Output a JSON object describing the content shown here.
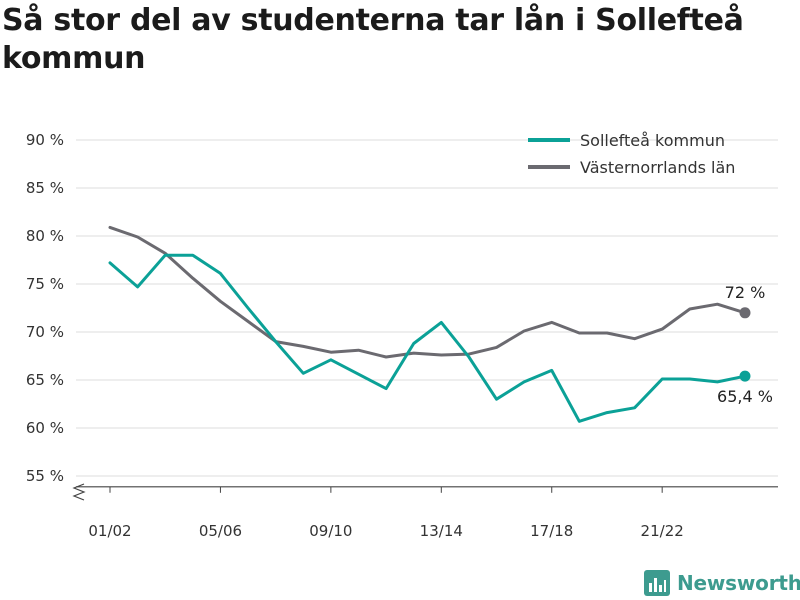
{
  "title": "Så stor del av studenterna tar lån i Sollefteå kommun",
  "brand": {
    "name": "Newsworthy",
    "logo_icon": "bar-chart-logo-icon",
    "color": "#3d9b8f"
  },
  "chart_data": {
    "type": "line",
    "title": "Så stor del av studenterna tar lån i Sollefteå kommun",
    "x": [
      "01/02",
      "02/03",
      "03/04",
      "04/05",
      "05/06",
      "06/07",
      "07/08",
      "08/09",
      "09/10",
      "10/11",
      "11/12",
      "12/13",
      "13/14",
      "14/15",
      "15/16",
      "16/17",
      "17/18",
      "18/19",
      "19/20",
      "20/21",
      "21/22",
      "22/23",
      "23/24",
      "24/25"
    ],
    "x_tick_labels": [
      "01/02",
      "05/06",
      "09/10",
      "13/14",
      "17/18",
      "21/22"
    ],
    "y_ticks": [
      55,
      60,
      65,
      70,
      75,
      80,
      85,
      90
    ],
    "y_tick_labels": [
      "55 %",
      "60 %",
      "65 %",
      "70 %",
      "75 %",
      "80 %",
      "85 %",
      "90 %"
    ],
    "ylim": [
      52,
      91
    ],
    "y_axis_break": true,
    "grid": true,
    "legend_position": "top-right",
    "series": [
      {
        "name": "Sollefteå kommun",
        "color": "#0ba197",
        "values": [
          77.2,
          74.7,
          78.0,
          78.0,
          76.1,
          72.5,
          69.0,
          65.7,
          67.1,
          65.6,
          64.1,
          68.8,
          71.0,
          67.4,
          63.0,
          64.8,
          66.0,
          60.7,
          61.6,
          62.1,
          65.1,
          65.1,
          64.8,
          65.4
        ],
        "end_label": "65,4 %"
      },
      {
        "name": "Västernorrlands län",
        "color": "#6b6a70",
        "values": [
          80.9,
          79.9,
          78.2,
          75.6,
          73.2,
          71.1,
          69.0,
          68.5,
          67.9,
          68.1,
          67.4,
          67.8,
          67.6,
          67.7,
          68.4,
          70.1,
          71.0,
          69.9,
          69.9,
          69.3,
          70.3,
          72.4,
          72.9,
          72.0
        ],
        "end_label": "72 %"
      }
    ]
  }
}
